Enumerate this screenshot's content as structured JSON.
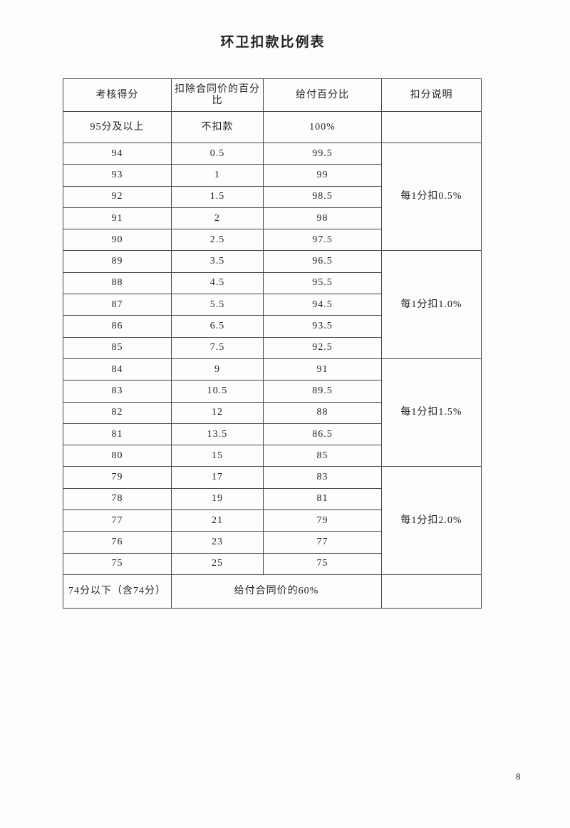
{
  "title": "环卫扣款比例表",
  "headers": [
    "考核得分",
    "扣除合同价的百分比",
    "给付百分比",
    "扣分说明"
  ],
  "first_row": {
    "score": "95分及以上",
    "deduct": "不扣款",
    "pay": "100%",
    "note": ""
  },
  "groups": [
    {
      "note": "每1分扣0.5%",
      "rows": [
        [
          "94",
          "0.5",
          "99.5"
        ],
        [
          "93",
          "1",
          "99"
        ],
        [
          "92",
          "1.5",
          "98.5"
        ],
        [
          "91",
          "2",
          "98"
        ],
        [
          "90",
          "2.5",
          "97.5"
        ]
      ]
    },
    {
      "note": "每1分扣1.0%",
      "rows": [
        [
          "89",
          "3.5",
          "96.5"
        ],
        [
          "88",
          "4.5",
          "95.5"
        ],
        [
          "87",
          "5.5",
          "94.5"
        ],
        [
          "86",
          "6.5",
          "93.5"
        ],
        [
          "85",
          "7.5",
          "92.5"
        ]
      ]
    },
    {
      "note": "每1分扣1.5%",
      "rows": [
        [
          "84",
          "9",
          "91"
        ],
        [
          "83",
          "10.5",
          "89.5"
        ],
        [
          "82",
          "12",
          "88"
        ],
        [
          "81",
          "13.5",
          "86.5"
        ],
        [
          "80",
          "15",
          "85"
        ]
      ]
    },
    {
      "note": "每1分扣2.0%",
      "rows": [
        [
          "79",
          "17",
          "83"
        ],
        [
          "78",
          "19",
          "81"
        ],
        [
          "77",
          "21",
          "79"
        ],
        [
          "76",
          "23",
          "77"
        ],
        [
          "75",
          "25",
          "75"
        ]
      ]
    }
  ],
  "last_row": {
    "score": "74分以下（含74分）",
    "merged": "给付合同价的60%",
    "note": ""
  },
  "page_number": "8"
}
